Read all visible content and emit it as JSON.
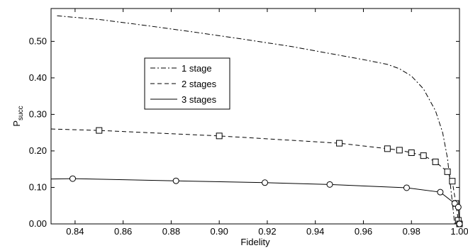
{
  "chart_data": {
    "type": "line",
    "title": "",
    "xlabel": "Fidelity",
    "ylabel": "P",
    "ylabel_subscript": "succ",
    "xlim": [
      0.83,
      1.0
    ],
    "ylim": [
      0.0,
      0.59
    ],
    "grid": false,
    "legend_position": "upper-left-inner",
    "x_ticks": [
      0.84,
      0.86,
      0.88,
      0.9,
      0.92,
      0.94,
      0.96,
      0.98,
      1.0
    ],
    "x_tick_labels": [
      "0.84",
      "0.86",
      "0.88",
      "0.90",
      "0.92",
      "0.94",
      "0.96",
      "0.98",
      "1.00"
    ],
    "y_ticks": [
      0.0,
      0.1,
      0.2,
      0.3,
      0.4,
      0.5
    ],
    "y_tick_labels": [
      "0.00",
      "0.10",
      "0.20",
      "0.30",
      "0.40",
      "0.50"
    ],
    "series": [
      {
        "name": "1 stage",
        "style": "dashdot",
        "marker": "none",
        "x": [
          0.8325,
          0.85,
          0.87,
          0.89,
          0.91,
          0.93,
          0.95,
          0.96,
          0.97,
          0.975,
          0.98,
          0.985,
          0.99,
          0.993,
          0.995,
          0.996,
          0.997,
          0.998
        ],
        "y": [
          0.57,
          0.56,
          0.543,
          0.525,
          0.506,
          0.486,
          0.462,
          0.45,
          0.437,
          0.425,
          0.405,
          0.37,
          0.31,
          0.25,
          0.18,
          0.12,
          0.06,
          0.0
        ]
      },
      {
        "name": "2 stages",
        "style": "dashed",
        "marker": "square",
        "x": [
          0.83,
          0.85,
          0.9,
          0.95,
          0.97,
          0.975,
          0.98,
          0.985,
          0.99,
          0.995,
          0.997,
          0.9985,
          0.9995,
          1.0
        ],
        "y": [
          0.26,
          0.256,
          0.241,
          0.221,
          0.206,
          0.202,
          0.195,
          0.187,
          0.17,
          0.143,
          0.117,
          0.056,
          0.01,
          0.0
        ]
      },
      {
        "name": "3 stages",
        "style": "solid",
        "marker": "circle",
        "x": [
          0.83,
          0.839,
          0.882,
          0.919,
          0.946,
          0.978,
          0.992,
          0.998,
          0.9995,
          1.0
        ],
        "y": [
          0.123,
          0.124,
          0.118,
          0.113,
          0.108,
          0.099,
          0.087,
          0.056,
          0.046,
          0.0
        ]
      }
    ]
  }
}
